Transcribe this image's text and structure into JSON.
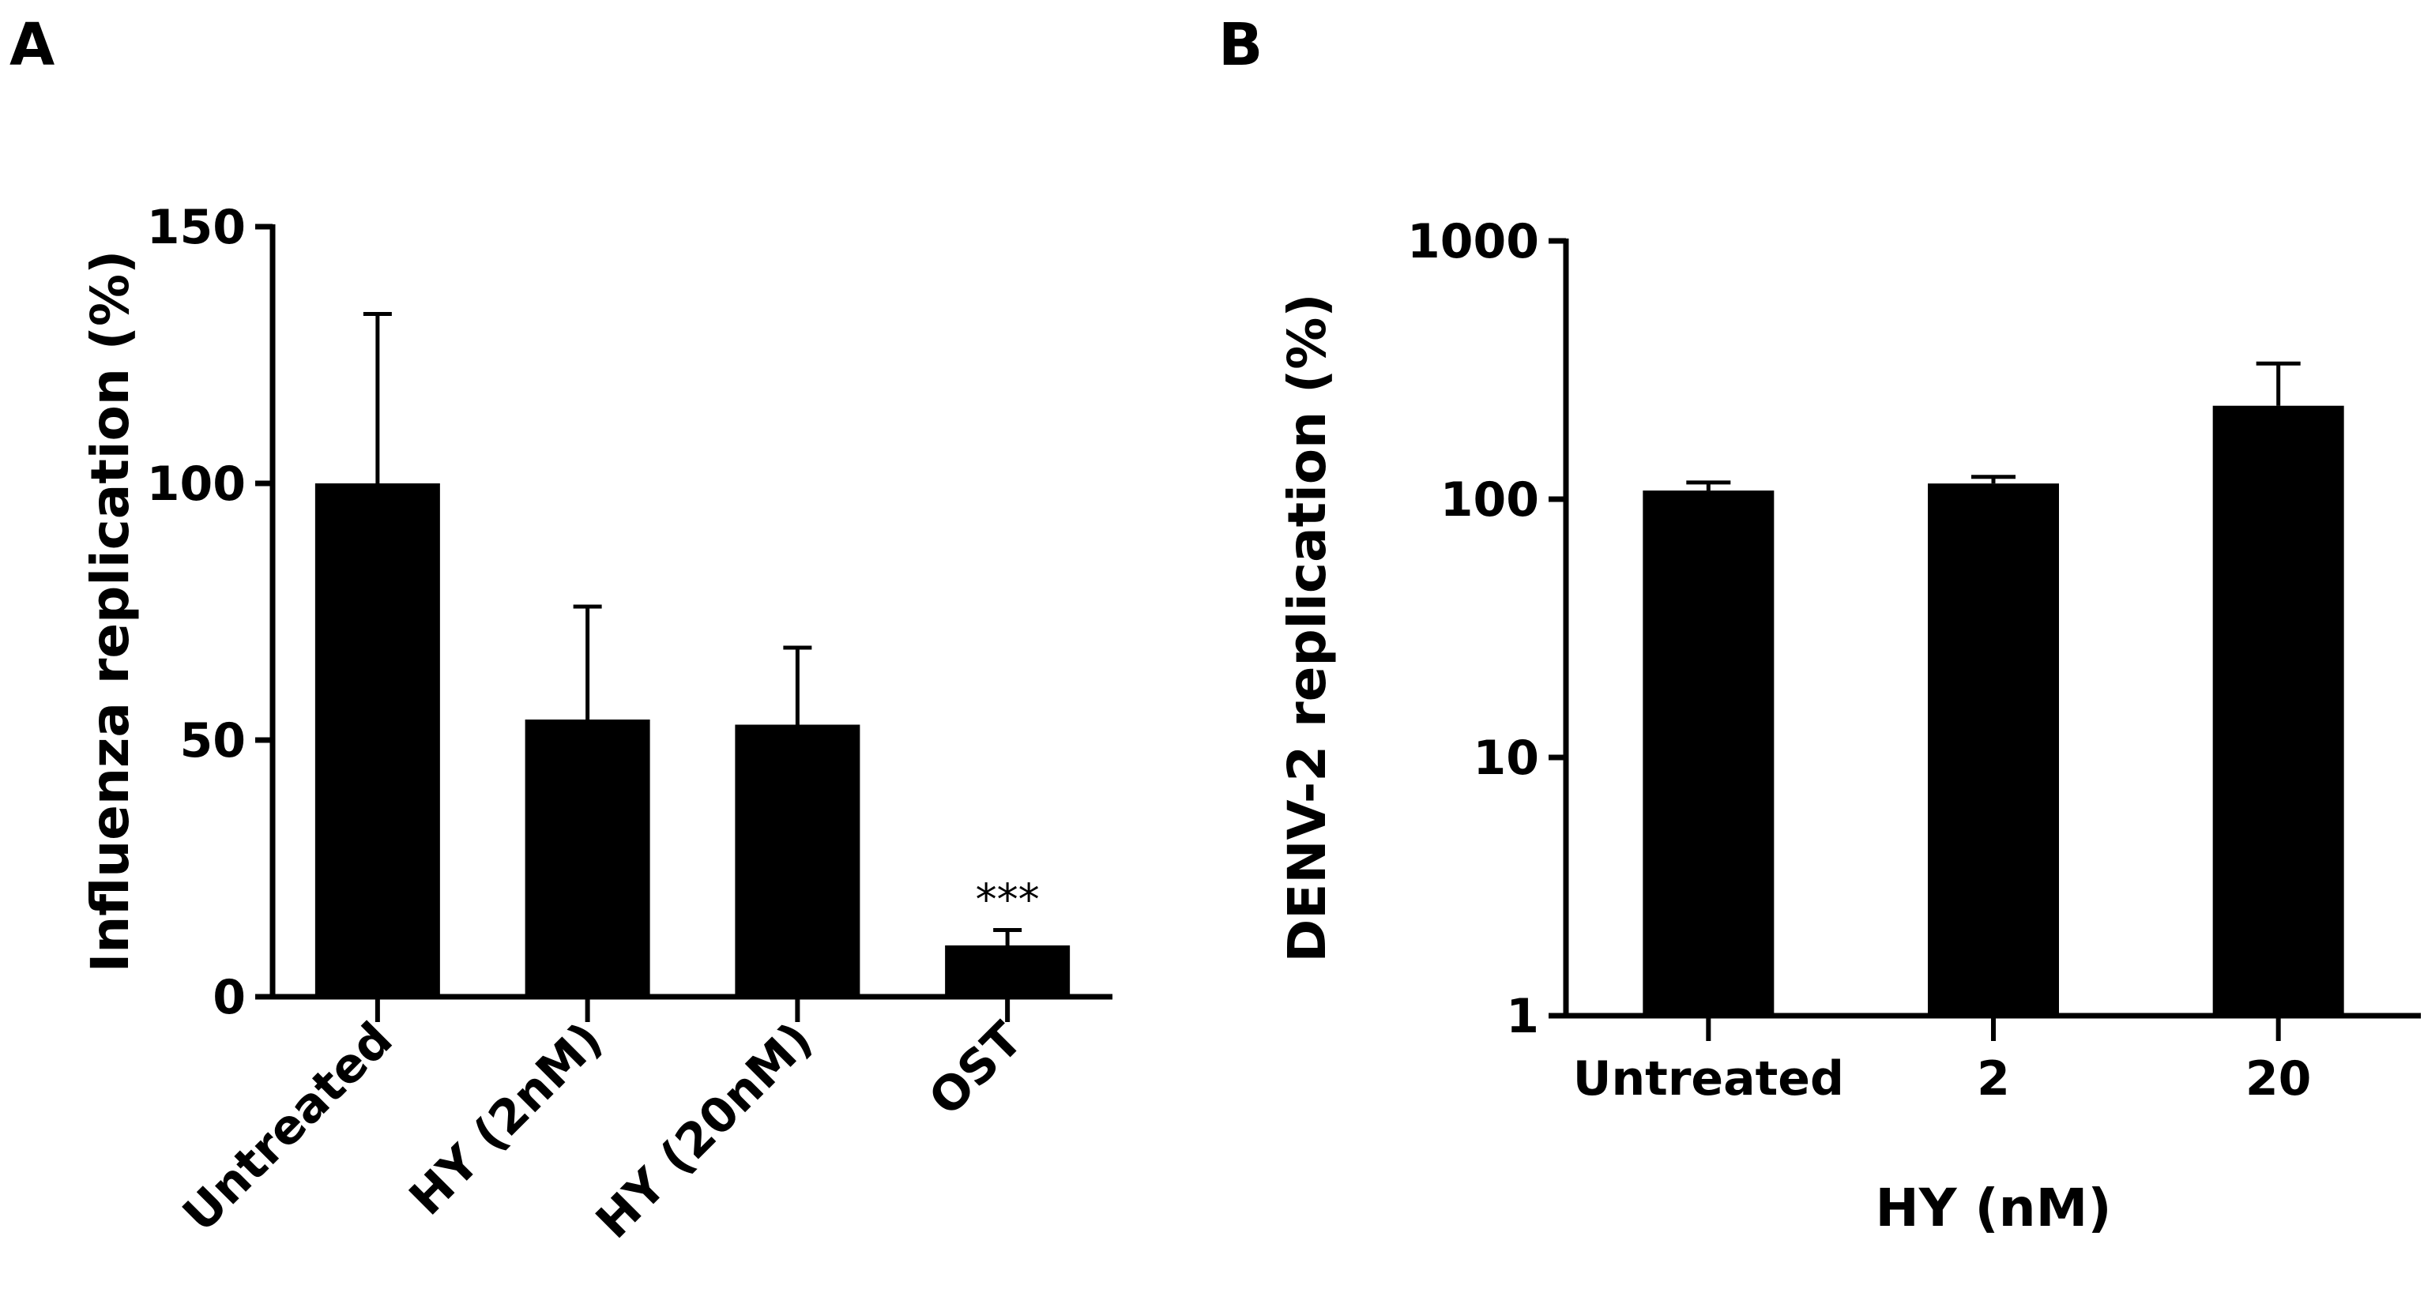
{
  "panels": {
    "a_label": "A",
    "b_label": "B"
  },
  "chart_data": [
    {
      "type": "bar",
      "panel": "A",
      "categories": [
        "Untreated",
        "HY (2nM)",
        "HY (20nM)",
        "OST"
      ],
      "values": [
        100,
        54,
        53,
        10
      ],
      "errors": [
        33,
        22,
        15,
        3
      ],
      "title": "",
      "xlabel": "",
      "ylabel": "Influenza replication (%)",
      "ylim": [
        0,
        150
      ],
      "yscale": "linear",
      "yticks": [
        0,
        50,
        100,
        150
      ],
      "ytick_labels": [
        "0",
        "50",
        "100",
        "150"
      ],
      "annotations": [
        {
          "category": "OST",
          "text": "***"
        }
      ],
      "bar_color": "#000000",
      "grid": false,
      "legend": false
    },
    {
      "type": "bar",
      "panel": "B",
      "categories": [
        "Untreated",
        "2",
        "20"
      ],
      "values": [
        108,
        115,
        230
      ],
      "errors": [
        8,
        7,
        105
      ],
      "title": "",
      "xlabel": "HY (nM)",
      "ylabel": "DENV-2 replication (%)",
      "ylim": [
        1,
        1000
      ],
      "yscale": "log",
      "yticks": [
        1,
        10,
        100,
        1000
      ],
      "ytick_labels": [
        "1",
        "10",
        "100",
        "1000"
      ],
      "annotations": [],
      "bar_color": "#000000",
      "grid": false,
      "legend": false
    }
  ]
}
